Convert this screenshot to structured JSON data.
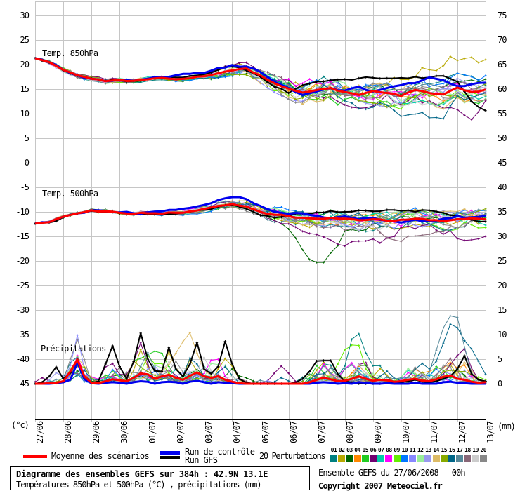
{
  "chart_data": {
    "type": "line",
    "title": "Diagramme des ensembles GEFS sur 384h : 42.9N 13.1E",
    "x_labels": [
      "27/06",
      "28/06",
      "29/06",
      "30/06",
      "01/07",
      "02/07",
      "03/07",
      "04/07",
      "05/07",
      "06/07",
      "07/07",
      "08/07",
      "09/07",
      "10/07",
      "11/07",
      "12/07",
      "13/07"
    ],
    "y_left": {
      "min": -45,
      "max": 30,
      "step": 5,
      "unit": "(°c)"
    },
    "y_right": {
      "min": 0,
      "max": 75,
      "step": 5,
      "unit": "(mm)"
    },
    "panels": [
      {
        "id": "t850",
        "label": "Temp. 850hPa",
        "res_hours": 12,
        "mean": [
          21.3,
          20.5,
          18.9,
          17.8,
          17.1,
          16.6,
          16.9,
          16.7,
          17.0,
          17.3,
          17.0,
          17.2,
          17.6,
          18.2,
          18.8,
          19.2,
          17.8,
          16.2,
          15.1,
          14.3,
          14.8,
          15.2,
          14.4,
          13.8,
          14.6,
          14.2,
          13.6,
          14.8,
          14.2,
          13.9,
          15.3,
          14.4,
          14.9
        ],
        "control": [
          21.3,
          20.5,
          18.9,
          17.8,
          17.1,
          16.6,
          16.9,
          16.7,
          17.1,
          17.5,
          17.8,
          18.1,
          18.3,
          19.3,
          19.9,
          19.6,
          18.5,
          16.5,
          15.2,
          13.8,
          14.5,
          15.2,
          14.7,
          15.5,
          14.5,
          15.2,
          15.8,
          16.2,
          17.4,
          16.8,
          15.6,
          16.0,
          16.3
        ],
        "gfs": [
          21.3,
          20.4,
          18.8,
          17.7,
          17.2,
          16.7,
          16.8,
          16.6,
          17.1,
          17.4,
          17.4,
          17.7,
          18.0,
          18.9,
          19.6,
          18.8,
          17.5,
          15.5,
          14.2,
          15.8,
          16.5,
          16.8,
          17.0,
          17.2,
          17.3,
          17.2,
          17.3,
          17.5,
          17.4,
          17.7,
          16.5,
          12.5,
          10.6
        ],
        "spread": {
          "base": 0.5,
          "amp": 2.4,
          "start_day": 4.0,
          "len_days": 7.0
        },
        "clamp": [
          8.8,
          23.5
        ]
      },
      {
        "id": "t500",
        "label": "Temp. 500hPa",
        "res_hours": 12,
        "mean": [
          -12.4,
          -12.1,
          -11.0,
          -10.3,
          -9.7,
          -9.9,
          -10.2,
          -10.4,
          -10.3,
          -10.4,
          -10.2,
          -9.9,
          -9.4,
          -8.8,
          -8.4,
          -8.9,
          -10.0,
          -10.6,
          -10.9,
          -11.2,
          -11.4,
          -11.2,
          -11.4,
          -11.7,
          -11.5,
          -11.8,
          -11.6,
          -11.4,
          -11.7,
          -11.9,
          -11.5,
          -11.3,
          -11.5
        ],
        "control": [
          -12.4,
          -12.1,
          -11.0,
          -10.3,
          -9.7,
          -9.8,
          -10.1,
          -10.3,
          -10.1,
          -9.9,
          -9.6,
          -9.2,
          -8.6,
          -7.6,
          -7.0,
          -7.4,
          -8.8,
          -10.0,
          -10.4,
          -10.3,
          -10.8,
          -11.3,
          -10.9,
          -11.5,
          -11.2,
          -11.8,
          -12.2,
          -11.6,
          -11.9,
          -11.4,
          -10.9,
          -11.1,
          -10.8
        ],
        "gfs": [
          -12.4,
          -12.2,
          -11.1,
          -10.4,
          -9.8,
          -10.0,
          -10.3,
          -10.5,
          -10.4,
          -10.6,
          -10.4,
          -10.0,
          -9.6,
          -9.0,
          -8.6,
          -9.4,
          -10.7,
          -11.2,
          -10.8,
          -10.4,
          -10.1,
          -9.8,
          -10.0,
          -9.7,
          -9.9,
          -9.6,
          -9.8,
          -10.0,
          -9.7,
          -10.2,
          -10.8,
          -11.6,
          -12.0
        ],
        "spread": {
          "base": 0.35,
          "amp": 2.0,
          "start_day": 3.5,
          "len_days": 8.0
        },
        "clamp": [
          -20.3,
          -5.3
        ]
      },
      {
        "id": "precip",
        "label": "Précipitations",
        "res_hours": 6,
        "mean": [
          0,
          0,
          0.1,
          0.2,
          0.5,
          2.5,
          4.9,
          1.5,
          0.2,
          0.1,
          0.5,
          0.9,
          0.7,
          0.5,
          1.2,
          2.1,
          1.9,
          1.0,
          1.5,
          1.8,
          1.2,
          0.8,
          1.6,
          2.3,
          1.5,
          1.2,
          1.5,
          0.8,
          0.4,
          0.1,
          0,
          0,
          0,
          0,
          0,
          0,
          0,
          0,
          0,
          0.3,
          0.8,
          1.2,
          0.9,
          0.5,
          0.6,
          1.0,
          1.5,
          1.0,
          0.6,
          0.8,
          0.7,
          0.4,
          0.5,
          0.8,
          1.0,
          0.6,
          0.5,
          0.9,
          1.4,
          1.7,
          1.0,
          0.8,
          0.4,
          0.2,
          0.3
        ],
        "control": [
          0,
          0,
          0,
          0.1,
          0.3,
          0.8,
          4.3,
          0.9,
          0.1,
          0,
          0.2,
          0.3,
          0.2,
          0,
          0.3,
          0.5,
          0.4,
          0,
          0.3,
          0.4,
          0.3,
          0,
          0.4,
          0.6,
          0.3,
          0,
          0.3,
          0.2,
          0.1,
          0,
          0,
          0,
          0,
          0,
          0,
          0,
          0,
          0,
          0,
          0,
          0.2,
          0.3,
          0.2,
          0,
          0.1,
          0,
          0.3,
          0.2,
          0,
          0,
          0.1,
          0,
          0,
          0,
          0.2,
          0,
          0,
          0,
          0.3,
          0.4,
          0.2,
          0.1,
          0,
          0,
          0
        ],
        "gfs": [
          0,
          0.3,
          1.5,
          3.4,
          1.0,
          2.2,
          5.0,
          1.2,
          0.1,
          0.5,
          4.0,
          7.7,
          3.5,
          1.0,
          4.5,
          10.3,
          5.0,
          2.6,
          2.5,
          7.4,
          3.0,
          1.5,
          4.0,
          8.4,
          3.0,
          2.0,
          3.5,
          8.6,
          4.0,
          1.0,
          0.2,
          0,
          0,
          0,
          0,
          0,
          0,
          0.2,
          1.0,
          2.5,
          4.6,
          4.7,
          4.7,
          2.0,
          0.5,
          0.2,
          0,
          0,
          0,
          0,
          0.2,
          0.3,
          0.3,
          0.5,
          0.8,
          0.4,
          0.3,
          0.5,
          1.0,
          1.5,
          3.0,
          5.7,
          2.0,
          0.8,
          0.5
        ],
        "clamp": [
          0,
          13.8
        ]
      }
    ],
    "anomalies": [
      {
        "panel": 0,
        "member": 1,
        "center": 14.7,
        "width": 1.8,
        "delta": 6.5
      },
      {
        "panel": 0,
        "member": 15,
        "center": 13.6,
        "width": 2.0,
        "delta": -2.6
      },
      {
        "panel": 0,
        "member": 5,
        "center": 15.3,
        "width": 1.5,
        "delta": -3.0
      },
      {
        "panel": 1,
        "member": 2,
        "center": 10.1,
        "width": 0.75,
        "delta": -8.6
      },
      {
        "panel": 1,
        "member": 5,
        "center": 11.6,
        "width": 1.8,
        "delta": -4.2
      },
      {
        "panel": 1,
        "member": 5,
        "center": 15.6,
        "width": 1.2,
        "delta": -4.6
      },
      {
        "panel": 1,
        "member": 17,
        "center": 13.2,
        "width": 1.8,
        "delta": -3.5
      },
      {
        "panel": 2,
        "member": 16,
        "center": 14.75,
        "width": 0.55,
        "delta": 13.2
      },
      {
        "panel": 2,
        "member": 15,
        "center": 14.95,
        "width": 0.7,
        "delta": 9.6
      },
      {
        "panel": 2,
        "member": 0,
        "center": 11.5,
        "width": 0.45,
        "delta": 7.6
      },
      {
        "panel": 2,
        "member": 8,
        "center": 11.35,
        "width": 0.4,
        "delta": 7.0
      },
      {
        "panel": 2,
        "member": 5,
        "center": 8.75,
        "width": 0.35,
        "delta": 3.6
      },
      {
        "panel": 2,
        "member": 5,
        "center": 15.1,
        "width": 0.45,
        "delta": 4.6
      },
      {
        "panel": 2,
        "member": 13,
        "center": 5.3,
        "width": 0.5,
        "delta": 7.0
      },
      {
        "panel": 2,
        "member": 4,
        "center": 4.25,
        "width": 0.5,
        "delta": 6.2
      },
      {
        "panel": 2,
        "member": 3,
        "center": 14.2,
        "width": 0.4,
        "delta": 2.6
      }
    ],
    "colors": {
      "mean": "#ff0000",
      "control": "#0000ee",
      "gfs": "#000000",
      "grid": "#c6c6c6",
      "members": [
        "#008080",
        "#b8a800",
        "#006600",
        "#ff8800",
        "#22cc22",
        "#700070",
        "#00ccaa",
        "#ff00ff",
        "#66ee00",
        "#0077ff",
        "#8888ff",
        "#99ee99",
        "#9999ee",
        "#ddbb66",
        "#88aa00",
        "#006688",
        "#558899",
        "#886677",
        "#cccccc",
        "#888888"
      ]
    }
  },
  "legend": {
    "mean_label": "Moyenne des scénarios",
    "control_label": "Run de contrôle",
    "gfs_label": "Run GFS",
    "pert_label": "20 Perturbations",
    "member_ids": [
      "01",
      "02",
      "03",
      "04",
      "05",
      "06",
      "07",
      "08",
      "09",
      "10",
      "11",
      "12",
      "13",
      "14",
      "15",
      "16",
      "17",
      "18",
      "19",
      "20"
    ]
  },
  "footer": {
    "title": "Diagramme des ensembles GEFS sur 384h : 42.9N 13.1E",
    "subtitle": "Températures 850hPa et 500hPa (°C) , précipitations (mm)",
    "run_info": "Ensemble GEFS du 27/06/2008 - 00h",
    "copyright": "Copyright 2007 Meteociel.fr"
  },
  "units": {
    "left": "(°c)",
    "right": "(mm)"
  }
}
